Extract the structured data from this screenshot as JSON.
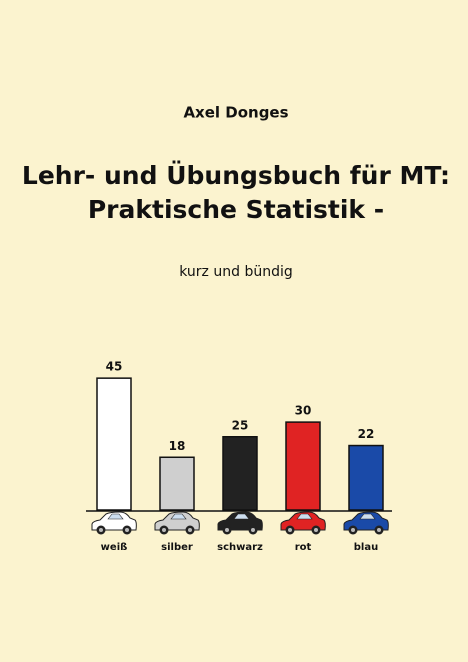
{
  "author": "Axel Donges",
  "title": [
    "Lehr- und Übungsbuch für MT:",
    "Praktische Statistik -"
  ],
  "subtitle": "kurz und bündig",
  "chart_data": {
    "type": "bar",
    "categories": [
      "weiß",
      "silber",
      "schwarz",
      "rot",
      "blau"
    ],
    "values": [
      45,
      18,
      25,
      30,
      22
    ],
    "colors": [
      "#ffffff",
      "#cfcfcf",
      "#222222",
      "#e02323",
      "#1a4aa8"
    ]
  }
}
